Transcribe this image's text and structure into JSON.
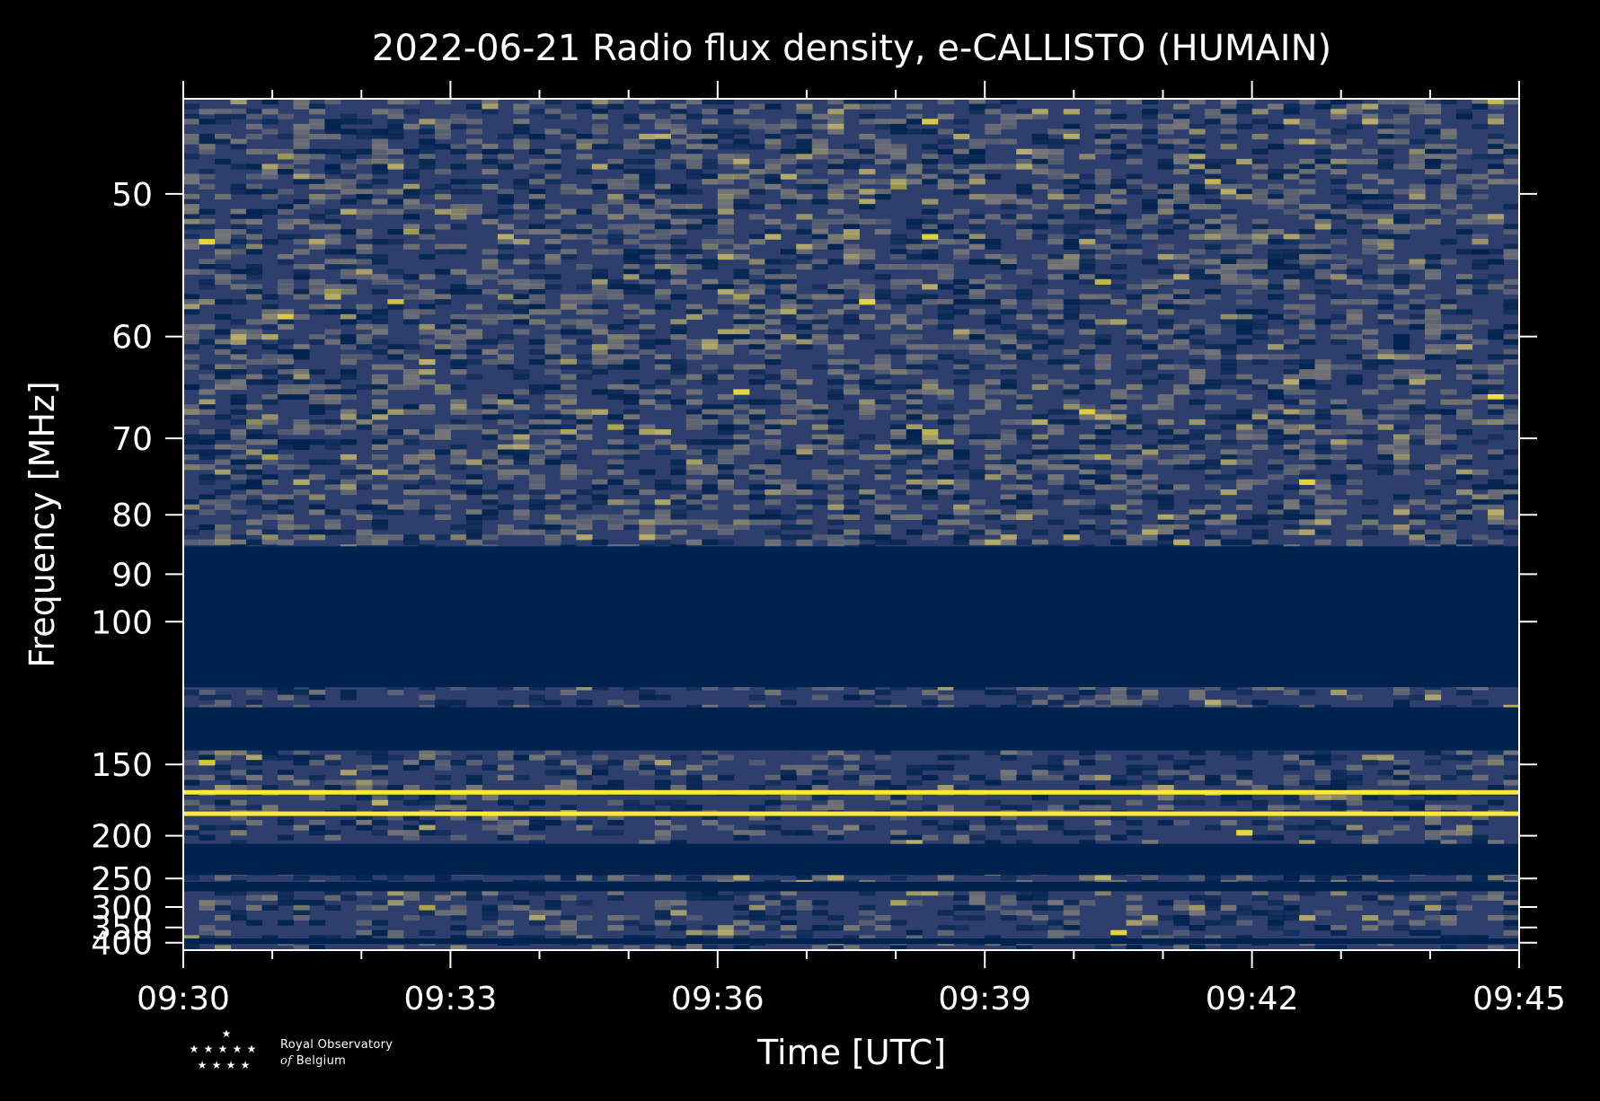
{
  "chart_data": {
    "type": "heatmap",
    "title": "2022-06-21 Radio flux density, e-CALLISTO (HUMAIN)",
    "xlabel": "Time [UTC]",
    "ylabel": "Frequency [MHz]",
    "x_ticks": [
      "09:30",
      "09:33",
      "09:36",
      "09:39",
      "09:42",
      "09:45"
    ],
    "xlim": [
      "09:30",
      "09:45"
    ],
    "y_ticks": [
      50,
      60,
      70,
      80,
      90,
      100,
      150,
      200,
      250,
      300,
      350,
      400
    ],
    "y_scale": "reciprocal (frequency increases downward)",
    "ylim": [
      45,
      430
    ],
    "colormap": [
      "#00224e",
      "#2e3f6e",
      "#7c7b78",
      "#c4b66a",
      "#fee838"
    ],
    "background_color": "#000000",
    "gap_bands_mhz": [
      [
        85,
        118
      ],
      [
        125,
        143
      ],
      [
        208,
        245
      ],
      [
        255,
        270
      ],
      [
        385,
        405
      ]
    ],
    "persistent_bright_lines_mhz": [
      166,
      181
    ],
    "grid": false
  },
  "logo": {
    "line1": "Royal Observatory",
    "line2_prefix": "of",
    "line2_rest": "Belgium"
  }
}
